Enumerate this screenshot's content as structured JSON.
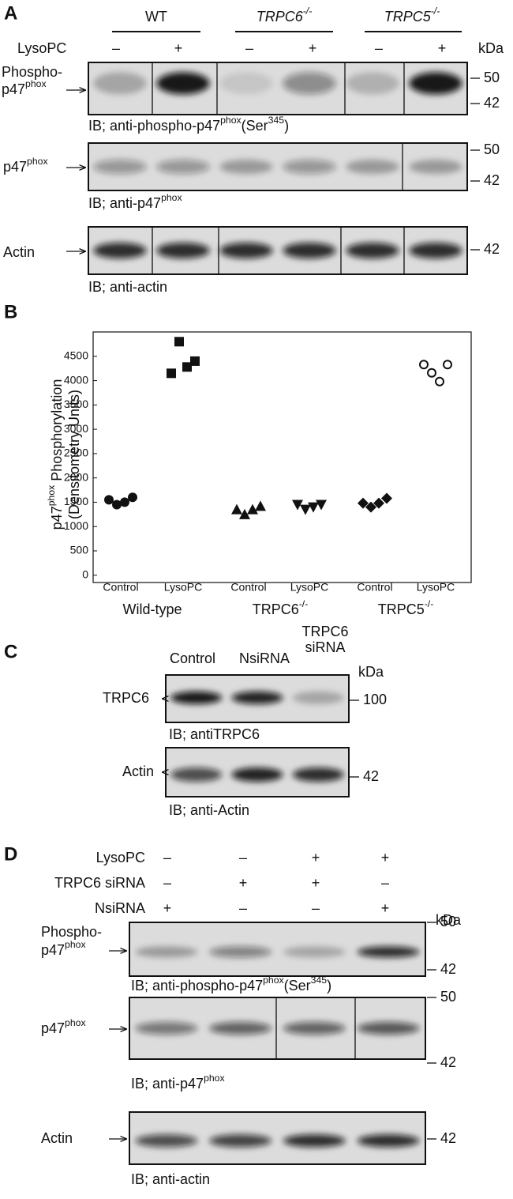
{
  "panel_a": {
    "letter": "A",
    "groups": [
      [
        "WT"
      ],
      [
        "TRPC6",
        "-/-"
      ],
      [
        "TRPC5",
        "-/-"
      ]
    ],
    "treatment": "LysoPC",
    "signs": [
      "–",
      "+",
      "–",
      "+",
      "–",
      "+"
    ],
    "unit": "kDa",
    "blots": [
      {
        "label": [
          [
            "Phospho-"
          ],
          [
            "p47",
            "phox"
          ]
        ],
        "markers": [
          "50",
          "42"
        ],
        "caption": [
          "IB; anti-phospho-p47",
          "phox",
          "(Ser",
          "345",
          ")"
        ]
      },
      {
        "label": [
          [
            "p47",
            "phox"
          ]
        ],
        "markers": [
          "50",
          "42"
        ],
        "caption": [
          "IB; anti-p47",
          "phox"
        ]
      },
      {
        "label": [
          [
            "Actin"
          ]
        ],
        "markers": [
          "42"
        ],
        "caption": [
          "IB; anti-actin"
        ]
      }
    ]
  },
  "panel_b": {
    "letter": "B"
  },
  "chart_data": {
    "type": "scatter",
    "y_label": [
      [
        "p47",
        "phox",
        " Phosphorylation"
      ],
      [
        "(Densitometry Units)"
      ]
    ],
    "categories": [
      "Control",
      "LysoPC",
      "Control",
      "LysoPC",
      "Control",
      "LysoPC"
    ],
    "groups": [
      [
        "Wild-type"
      ],
      [
        "TRPC6",
        "-/-"
      ],
      [
        "TRPC5",
        "-/-"
      ]
    ],
    "ylim": [
      -150,
      5000
    ],
    "yticks": [
      0,
      500,
      1000,
      1500,
      2000,
      2500,
      3000,
      3500,
      4000,
      4500
    ],
    "series": [
      {
        "marker": "circle",
        "color": "#111111",
        "values": [
          1550,
          1450,
          1500,
          1600
        ]
      },
      {
        "marker": "square",
        "color": "#111111",
        "values": [
          4150,
          4800,
          4280,
          4400
        ]
      },
      {
        "marker": "triangle-up",
        "color": "#111111",
        "values": [
          1350,
          1250,
          1350,
          1420
        ]
      },
      {
        "marker": "triangle-down",
        "color": "#111111",
        "values": [
          1450,
          1350,
          1400,
          1450
        ]
      },
      {
        "marker": "diamond",
        "color": "#111111",
        "values": [
          1480,
          1400,
          1480,
          1580
        ]
      },
      {
        "marker": "circle-open",
        "color": "#111111",
        "values": [
          4330,
          4160,
          3980,
          4330
        ]
      }
    ]
  },
  "panel_c": {
    "letter": "C",
    "lanes": [
      [
        "Control"
      ],
      [
        "NsiRNA"
      ],
      [
        "TRPC6",
        "siRNA"
      ]
    ],
    "unit": "kDa",
    "blots": [
      {
        "label": [
          [
            "TRPC6"
          ]
        ],
        "markers": [
          "100"
        ],
        "caption": [
          "IB; antiTRPC6"
        ]
      },
      {
        "label": [
          [
            "Actin"
          ]
        ],
        "markers": [
          "42"
        ],
        "caption": [
          "IB; anti-Actin"
        ]
      }
    ]
  },
  "panel_d": {
    "letter": "D",
    "rows": [
      {
        "name": "LysoPC",
        "signs": [
          "–",
          "–",
          "+",
          "+"
        ]
      },
      {
        "name": "TRPC6 siRNA",
        "signs": [
          "–",
          "+",
          "+",
          "–"
        ]
      },
      {
        "name": "NsiRNA",
        "signs": [
          "+",
          "–",
          "–",
          "+"
        ]
      }
    ],
    "unit": "kDa",
    "blots": [
      {
        "label": [
          [
            "Phospho-"
          ],
          [
            "p47",
            "phox"
          ]
        ],
        "markers": [
          "50",
          "42"
        ],
        "caption": [
          "IB; anti-phospho-p47",
          "phox",
          "(Ser",
          "345",
          ")"
        ]
      },
      {
        "label": [
          [
            "p47",
            "phox"
          ]
        ],
        "markers": [
          "50",
          "42"
        ],
        "caption": [
          "IB; anti-p47",
          "phox"
        ]
      },
      {
        "label": [
          [
            "Actin"
          ]
        ],
        "markers": [
          "42"
        ],
        "caption": [
          "IB; anti-actin"
        ]
      }
    ]
  }
}
